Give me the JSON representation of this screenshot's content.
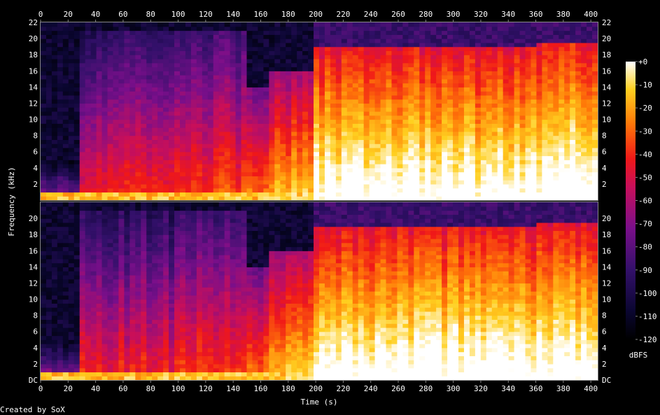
{
  "chart_data": {
    "type": "heatmap",
    "title": "",
    "xlabel": "Time (s)",
    "ylabel": "Frequency (kHz)",
    "xlim": [
      0,
      405
    ],
    "ylim_khz": [
      0,
      22
    ],
    "x_ticks": [
      0,
      20,
      40,
      60,
      80,
      100,
      120,
      140,
      160,
      180,
      200,
      220,
      240,
      260,
      280,
      300,
      320,
      340,
      360,
      380,
      400
    ],
    "y_ticks_top": [
      "2",
      "4",
      "6",
      "8",
      "10",
      "12",
      "14",
      "16",
      "18",
      "20",
      "22"
    ],
    "y_ticks_bottom": [
      "DC",
      "2",
      "4",
      "6",
      "8",
      "10",
      "12",
      "14",
      "16",
      "18",
      "20"
    ],
    "y_tick_values_top": [
      2,
      4,
      6,
      8,
      10,
      12,
      14,
      16,
      18,
      20,
      22
    ],
    "y_tick_values_bottom": [
      0,
      2,
      4,
      6,
      8,
      10,
      12,
      14,
      16,
      18,
      20
    ],
    "channels": 2,
    "colorbar": {
      "label": "dBFS",
      "range": [
        -120,
        0
      ],
      "ticks": [
        "+0",
        "-10",
        "-20",
        "-30",
        "-40",
        "-50",
        "-60",
        "-70",
        "-80",
        "-90",
        "-100",
        "-110",
        "-120"
      ],
      "tick_values": [
        0,
        -10,
        -20,
        -30,
        -40,
        -50,
        -60,
        -70,
        -80,
        -90,
        -100,
        -110,
        -120
      ]
    },
    "segments": [
      {
        "t0": 0,
        "t1": 28,
        "level": 0.12,
        "cutoff_khz": 4.8
      },
      {
        "t0": 28,
        "t1": 100,
        "level": 0.32,
        "cutoff_khz": 21
      },
      {
        "t0": 100,
        "t1": 148,
        "level": 0.38,
        "cutoff_khz": 21
      },
      {
        "t0": 148,
        "t1": 165,
        "level": 0.46,
        "cutoff_khz": 14
      },
      {
        "t0": 165,
        "t1": 200,
        "level": 0.55,
        "cutoff_khz": 16
      },
      {
        "t0": 200,
        "t1": 362,
        "level": 0.72,
        "cutoff_khz": 19
      },
      {
        "t0": 362,
        "t1": 405,
        "level": 0.74,
        "cutoff_khz": 19.5
      }
    ]
  },
  "footer": {
    "credit": "Created by SoX"
  }
}
